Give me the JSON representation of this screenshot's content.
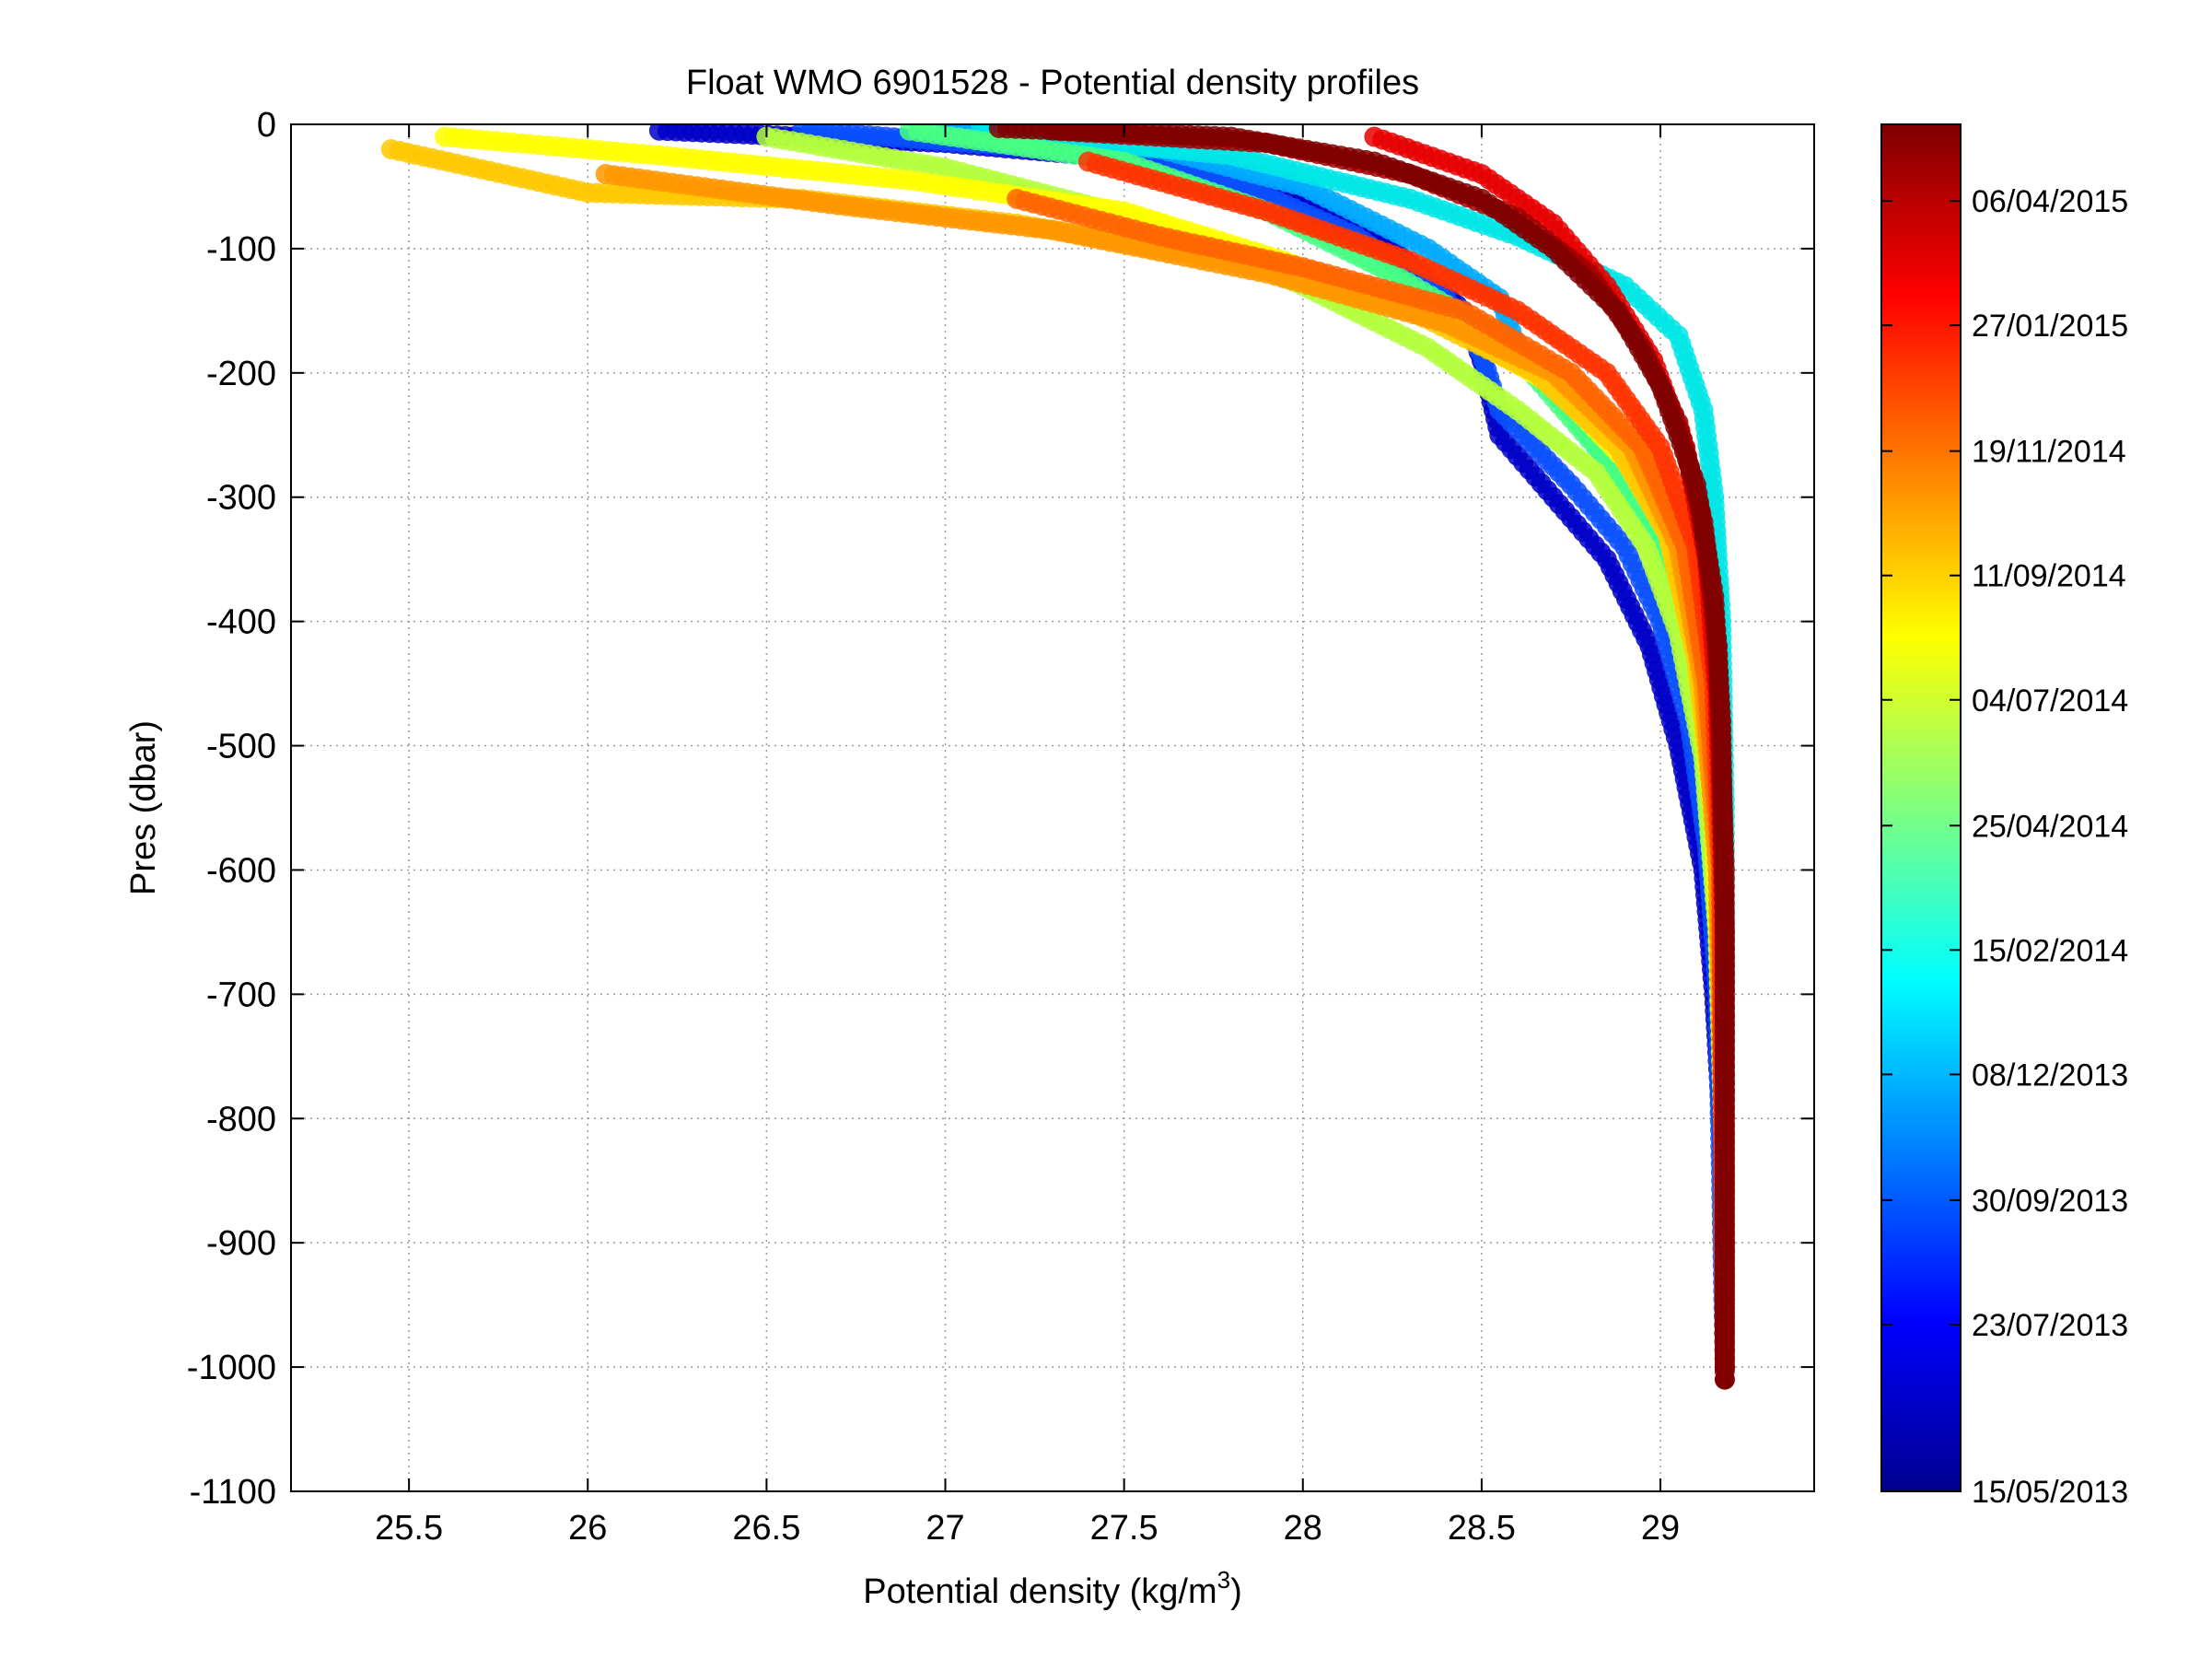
{
  "chart_data": {
    "type": "scatter",
    "title": "Float WMO 6901528 - Potential density profiles",
    "xlabel": "Potential density (kg/m",
    "xlabel_sup": "3",
    "xlabel_suffix": ")",
    "ylabel": "Pres (dbar)",
    "xlim": [
      25.17,
      29.43
    ],
    "ylim": [
      -1100,
      0
    ],
    "x_ticks": [
      25.5,
      26,
      26.5,
      27,
      27.5,
      28,
      28.5,
      29
    ],
    "x_tick_labels": [
      "25.5",
      "26",
      "26.5",
      "27",
      "27.5",
      "28",
      "28.5",
      "29"
    ],
    "y_ticks": [
      0,
      -100,
      -200,
      -300,
      -400,
      -500,
      -600,
      -700,
      -800,
      -900,
      -1000,
      -1100
    ],
    "y_tick_labels": [
      "0",
      "-100",
      "-200",
      "-300",
      "-400",
      "-500",
      "-600",
      "-700",
      "-800",
      "-900",
      "-1000",
      "-1100"
    ],
    "grid": true,
    "colormap": "jet",
    "colorbar": {
      "labels": [
        "06/04/2015",
        "27/01/2015",
        "19/11/2014",
        "11/09/2014",
        "04/07/2014",
        "25/04/2014",
        "15/02/2014",
        "08/12/2013",
        "30/09/2013",
        "23/07/2013",
        "15/05/2013"
      ],
      "label_fractions": [
        0.944,
        0.853,
        0.761,
        0.67,
        0.579,
        0.487,
        0.396,
        0.305,
        0.213,
        0.122,
        0.0
      ]
    },
    "profiles": [
      {
        "color": "#0000C8",
        "points": [
          [
            26.2,
            -5
          ],
          [
            27.0,
            -15
          ],
          [
            27.6,
            -30
          ],
          [
            28.0,
            -60
          ],
          [
            28.25,
            -100
          ],
          [
            28.45,
            -150
          ],
          [
            28.5,
            -190
          ],
          [
            28.55,
            -250
          ],
          [
            28.7,
            -300
          ],
          [
            28.85,
            -350
          ],
          [
            28.97,
            -420
          ],
          [
            29.05,
            -500
          ],
          [
            29.12,
            -600
          ],
          [
            29.15,
            -700
          ],
          [
            29.17,
            -800
          ],
          [
            29.18,
            -900
          ],
          [
            29.18,
            -1000
          ]
        ]
      },
      {
        "color": "#0A50FF",
        "points": [
          [
            26.6,
            -5
          ],
          [
            27.3,
            -20
          ],
          [
            27.8,
            -45
          ],
          [
            28.15,
            -90
          ],
          [
            28.4,
            -140
          ],
          [
            28.5,
            -185
          ],
          [
            28.55,
            -230
          ],
          [
            28.75,
            -290
          ],
          [
            28.9,
            -340
          ],
          [
            29.0,
            -400
          ],
          [
            29.08,
            -480
          ],
          [
            29.13,
            -580
          ],
          [
            29.16,
            -700
          ],
          [
            29.17,
            -850
          ],
          [
            29.18,
            -1000
          ]
        ]
      },
      {
        "color": "#00AAFF",
        "points": [
          [
            27.0,
            -5
          ],
          [
            27.6,
            -20
          ],
          [
            28.0,
            -50
          ],
          [
            28.35,
            -100
          ],
          [
            28.55,
            -140
          ],
          [
            28.6,
            -180
          ],
          [
            28.75,
            -230
          ],
          [
            28.9,
            -290
          ],
          [
            29.02,
            -350
          ],
          [
            29.08,
            -430
          ],
          [
            29.13,
            -520
          ],
          [
            29.16,
            -650
          ],
          [
            29.18,
            -800
          ],
          [
            29.18,
            -1000
          ]
        ]
      },
      {
        "color": "#00E6E6",
        "points": [
          [
            27.1,
            -5
          ],
          [
            27.8,
            -25
          ],
          [
            28.3,
            -60
          ],
          [
            28.6,
            -90
          ],
          [
            28.9,
            -130
          ],
          [
            29.05,
            -170
          ],
          [
            29.12,
            -230
          ],
          [
            29.15,
            -300
          ],
          [
            29.17,
            -400
          ],
          [
            29.18,
            -550
          ],
          [
            29.18,
            -800
          ],
          [
            29.18,
            -1000
          ]
        ]
      },
      {
        "color": "#46FF82",
        "points": [
          [
            26.9,
            -5
          ],
          [
            27.5,
            -30
          ],
          [
            27.9,
            -70
          ],
          [
            28.25,
            -120
          ],
          [
            28.55,
            -170
          ],
          [
            28.7,
            -220
          ],
          [
            28.85,
            -270
          ],
          [
            28.98,
            -330
          ],
          [
            29.06,
            -400
          ],
          [
            29.12,
            -500
          ],
          [
            29.16,
            -650
          ],
          [
            29.18,
            -850
          ],
          [
            29.18,
            -1000
          ]
        ]
      },
      {
        "color": "#B4FF3C",
        "points": [
          [
            26.5,
            -10
          ],
          [
            27.0,
            -35
          ],
          [
            27.6,
            -80
          ],
          [
            28.0,
            -130
          ],
          [
            28.35,
            -180
          ],
          [
            28.6,
            -230
          ],
          [
            28.82,
            -280
          ],
          [
            28.96,
            -340
          ],
          [
            29.05,
            -410
          ],
          [
            29.12,
            -510
          ],
          [
            29.16,
            -650
          ],
          [
            29.18,
            -850
          ],
          [
            29.18,
            -1000
          ]
        ]
      },
      {
        "color": "#FFFF00",
        "points": [
          [
            25.6,
            -10
          ],
          [
            26.2,
            -25
          ],
          [
            26.9,
            -45
          ],
          [
            27.5,
            -70
          ],
          [
            27.95,
            -110
          ],
          [
            28.4,
            -160
          ],
          [
            28.7,
            -210
          ],
          [
            28.9,
            -270
          ],
          [
            29.02,
            -330
          ],
          [
            29.1,
            -430
          ],
          [
            29.15,
            -560
          ],
          [
            29.18,
            -800
          ],
          [
            29.18,
            -1000
          ]
        ]
      },
      {
        "color": "#FFC800",
        "points": [
          [
            25.45,
            -20
          ],
          [
            26.0,
            -55
          ],
          [
            26.6,
            -60
          ],
          [
            27.2,
            -80
          ],
          [
            27.8,
            -110
          ],
          [
            28.3,
            -150
          ],
          [
            28.65,
            -200
          ],
          [
            28.88,
            -260
          ],
          [
            29.02,
            -330
          ],
          [
            29.1,
            -430
          ],
          [
            29.16,
            -580
          ],
          [
            29.18,
            -800
          ],
          [
            29.18,
            -1000
          ]
        ]
      },
      {
        "color": "#FF9600",
        "points": [
          [
            26.05,
            -40
          ],
          [
            26.7,
            -65
          ],
          [
            27.3,
            -85
          ],
          [
            27.9,
            -120
          ],
          [
            28.4,
            -160
          ],
          [
            28.7,
            -200
          ],
          [
            28.92,
            -260
          ],
          [
            29.05,
            -340
          ],
          [
            29.12,
            -450
          ],
          [
            29.16,
            -600
          ],
          [
            29.18,
            -850
          ],
          [
            29.18,
            -1000
          ]
        ]
      },
      {
        "color": "#FF6400",
        "points": [
          [
            27.2,
            -60
          ],
          [
            27.6,
            -90
          ],
          [
            28.0,
            -115
          ],
          [
            28.45,
            -150
          ],
          [
            28.75,
            -200
          ],
          [
            28.95,
            -260
          ],
          [
            29.07,
            -340
          ],
          [
            29.13,
            -450
          ],
          [
            29.17,
            -600
          ],
          [
            29.18,
            -1000
          ]
        ]
      },
      {
        "color": "#FF3200",
        "points": [
          [
            27.4,
            -30
          ],
          [
            27.9,
            -70
          ],
          [
            28.3,
            -110
          ],
          [
            28.6,
            -150
          ],
          [
            28.85,
            -200
          ],
          [
            29.0,
            -260
          ],
          [
            29.1,
            -340
          ],
          [
            29.15,
            -450
          ],
          [
            29.17,
            -600
          ],
          [
            29.18,
            -1000
          ]
        ]
      },
      {
        "color": "#E60000",
        "points": [
          [
            28.2,
            -10
          ],
          [
            28.5,
            -40
          ],
          [
            28.7,
            -80
          ],
          [
            28.85,
            -130
          ],
          [
            28.98,
            -190
          ],
          [
            29.07,
            -260
          ],
          [
            29.13,
            -350
          ],
          [
            29.16,
            -460
          ],
          [
            29.18,
            -650
          ],
          [
            29.18,
            -1000
          ]
        ]
      },
      {
        "color": "#A00000",
        "points": [
          [
            27.3,
            -5
          ],
          [
            27.9,
            -15
          ],
          [
            28.3,
            -40
          ],
          [
            28.6,
            -75
          ],
          [
            28.8,
            -120
          ],
          [
            28.95,
            -180
          ],
          [
            29.05,
            -240
          ],
          [
            29.12,
            -320
          ],
          [
            29.16,
            -420
          ],
          [
            29.18,
            -600
          ],
          [
            29.18,
            -1000
          ]
        ]
      },
      {
        "color": "#800000",
        "points": [
          [
            27.15,
            -3
          ],
          [
            27.8,
            -10
          ],
          [
            28.2,
            -30
          ],
          [
            28.5,
            -60
          ],
          [
            28.7,
            -100
          ],
          [
            28.88,
            -150
          ],
          [
            29.0,
            -210
          ],
          [
            29.1,
            -290
          ],
          [
            29.15,
            -380
          ],
          [
            29.17,
            -480
          ],
          [
            29.18,
            -650
          ],
          [
            29.18,
            -1010
          ]
        ]
      }
    ]
  }
}
